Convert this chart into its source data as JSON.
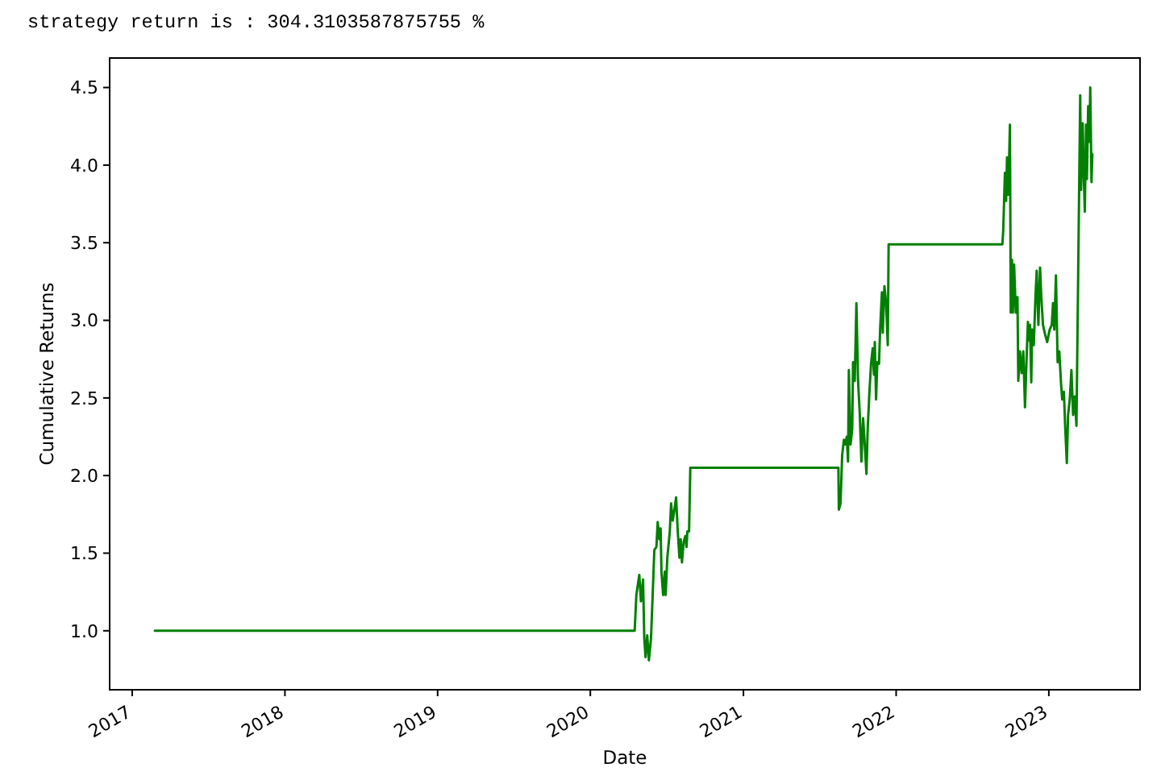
{
  "chart_data": {
    "type": "line",
    "title": "strategy return is : 304.3103587875755 %",
    "xlabel": "Date",
    "ylabel": "Cumulative Returns",
    "x": [
      "2017-02-24",
      "2020-04-16",
      "2020-04-20",
      "2020-04-27",
      "2020-05-01",
      "2020-05-06",
      "2020-05-09",
      "2020-05-12",
      "2020-05-16",
      "2020-05-20",
      "2020-05-25",
      "2020-05-29",
      "2020-06-02",
      "2020-06-07",
      "2020-06-10",
      "2020-06-14",
      "2020-06-17",
      "2020-06-19",
      "2020-06-23",
      "2020-06-27",
      "2020-06-29",
      "2020-07-03",
      "2020-07-09",
      "2020-07-12",
      "2020-07-16",
      "2020-07-20",
      "2020-07-24",
      "2020-07-28",
      "2020-08-01",
      "2020-08-04",
      "2020-08-07",
      "2020-08-11",
      "2020-08-15",
      "2020-08-18",
      "2020-08-20",
      "2020-08-24",
      "2020-08-27",
      "2021-08-16",
      "2021-08-17",
      "2021-08-21",
      "2021-08-25",
      "2021-08-29",
      "2021-09-01",
      "2021-09-05",
      "2021-09-08",
      "2021-09-10",
      "2021-09-14",
      "2021-09-18",
      "2021-09-20",
      "2021-09-24",
      "2021-09-28",
      "2021-10-02",
      "2021-10-06",
      "2021-10-10",
      "2021-10-14",
      "2021-10-18",
      "2021-10-22",
      "2021-10-25",
      "2021-10-29",
      "2021-11-02",
      "2021-11-06",
      "2021-11-09",
      "2021-11-11",
      "2021-11-14",
      "2021-11-17",
      "2021-11-21",
      "2021-11-24",
      "2021-11-28",
      "2021-11-30",
      "2021-12-04",
      "2021-12-08",
      "2021-12-12",
      "2021-12-14",
      "2022-09-12",
      "2022-09-14",
      "2022-09-18",
      "2022-09-21",
      "2022-09-23",
      "2022-09-26",
      "2022-09-30",
      "2022-10-02",
      "2022-10-05",
      "2022-10-07",
      "2022-10-10",
      "2022-10-14",
      "2022-10-18",
      "2022-10-20",
      "2022-10-24",
      "2022-10-28",
      "2022-11-01",
      "2022-11-05",
      "2022-11-09",
      "2022-11-12",
      "2022-11-15",
      "2022-11-17",
      "2022-11-20",
      "2022-11-22",
      "2022-11-26",
      "2022-11-30",
      "2022-12-03",
      "2022-12-07",
      "2022-12-11",
      "2022-12-14",
      "2022-12-18",
      "2022-12-23",
      "2022-12-28",
      "2023-01-03",
      "2023-01-08",
      "2023-01-11",
      "2023-01-14",
      "2023-01-18",
      "2023-01-22",
      "2023-01-26",
      "2023-01-30",
      "2023-02-02",
      "2023-02-06",
      "2023-02-09",
      "2023-02-13",
      "2023-02-16",
      "2023-02-20",
      "2023-02-24",
      "2023-02-28",
      "2023-03-04",
      "2023-03-08",
      "2023-03-17",
      "2023-03-19",
      "2023-03-23",
      "2023-03-25",
      "2023-03-28",
      "2023-03-31",
      "2023-04-02",
      "2023-04-05",
      "2023-04-08",
      "2023-04-10",
      "2023-04-13",
      "2023-04-15"
    ],
    "series": [
      {
        "color": "#008000",
        "values": [
          1.0,
          1.0,
          1.23,
          1.36,
          1.19,
          1.33,
          0.95,
          0.83,
          0.97,
          0.81,
          0.95,
          1.23,
          1.52,
          1.54,
          1.7,
          1.59,
          1.66,
          1.38,
          1.23,
          1.38,
          1.23,
          1.47,
          1.64,
          1.82,
          1.71,
          1.78,
          1.86,
          1.64,
          1.47,
          1.59,
          1.44,
          1.57,
          1.61,
          1.54,
          1.64,
          1.64,
          2.05,
          2.05,
          1.78,
          1.82,
          2.13,
          2.23,
          2.2,
          2.25,
          2.09,
          2.68,
          2.2,
          2.3,
          2.73,
          2.61,
          3.11,
          2.61,
          2.4,
          2.09,
          2.37,
          2.2,
          2.01,
          2.3,
          2.53,
          2.72,
          2.82,
          2.65,
          2.86,
          2.49,
          2.73,
          2.72,
          2.96,
          3.18,
          2.92,
          3.22,
          3.11,
          2.84,
          3.49,
          3.49,
          3.58,
          3.95,
          3.77,
          4.05,
          3.81,
          4.26,
          3.05,
          3.39,
          3.05,
          3.36,
          3.05,
          3.15,
          2.61,
          2.8,
          2.66,
          2.8,
          2.44,
          2.77,
          2.99,
          2.87,
          2.97,
          2.6,
          2.94,
          2.84,
          3.15,
          3.32,
          2.97,
          3.34,
          3.15,
          2.97,
          2.91,
          2.86,
          2.94,
          2.97,
          3.11,
          2.94,
          3.29,
          2.73,
          2.8,
          2.6,
          2.49,
          2.54,
          2.32,
          2.08,
          2.39,
          2.49,
          2.68,
          2.39,
          2.51,
          2.32,
          4.45,
          3.84,
          4.27,
          3.98,
          3.7,
          4.26,
          3.91,
          4.38,
          4.15,
          4.5,
          3.89,
          4.07
        ]
      }
    ],
    "xlim": [
      "2016-11-08",
      "2023-08-07"
    ],
    "xticks": [
      "2017",
      "2018",
      "2019",
      "2020",
      "2021",
      "2022",
      "2023"
    ],
    "ylim": [
      0.62,
      4.69
    ],
    "yticks": [
      {
        "value": 1,
        "label": "1.0"
      },
      1.5,
      {
        "value": 2,
        "label": "2.0"
      },
      2.5,
      {
        "value": 3,
        "label": "3.0"
      },
      3.5,
      {
        "value": 4,
        "label": "4.0"
      },
      4.5
    ]
  }
}
